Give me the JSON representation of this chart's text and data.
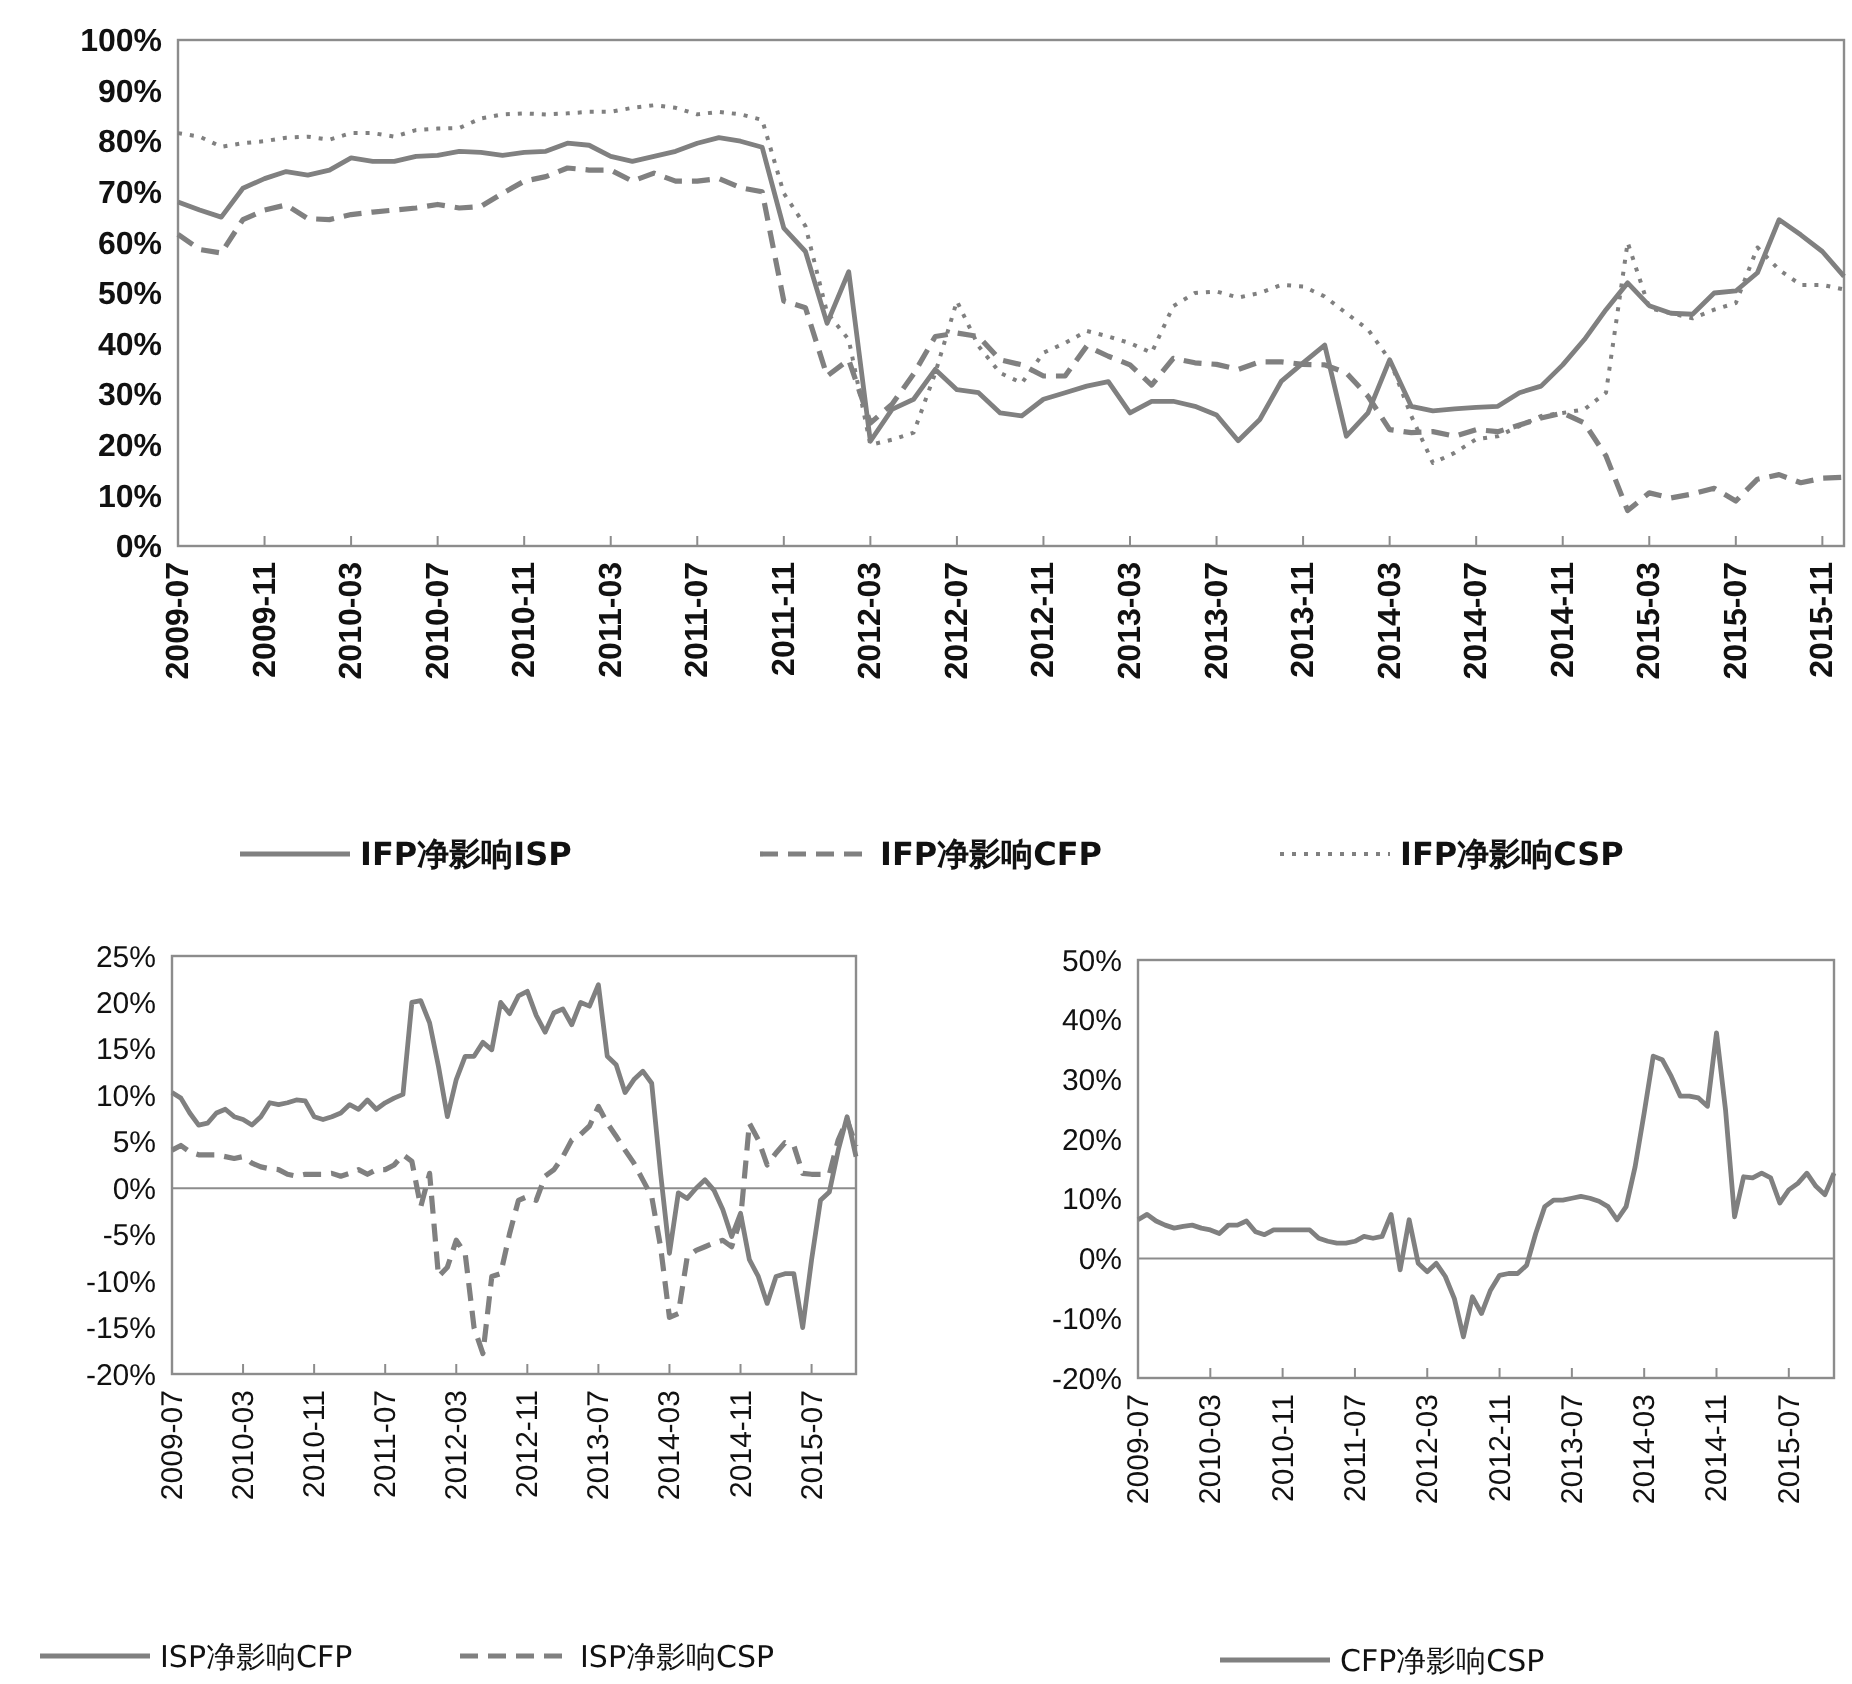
{
  "chart_data": [
    {
      "type": "line",
      "categories": [
        "2009-07",
        null,
        null,
        null,
        "2009-11",
        null,
        null,
        null,
        "2010-03",
        null,
        null,
        null,
        "2010-07",
        null,
        null,
        null,
        "2010-11",
        null,
        null,
        null,
        "2011-03",
        null,
        null,
        null,
        "2011-07",
        null,
        null,
        null,
        "2011-11",
        null,
        null,
        null,
        "2012-03",
        null,
        null,
        null,
        "2012-07",
        null,
        null,
        null,
        "2012-11",
        null,
        null,
        null,
        "2013-03",
        null,
        null,
        null,
        "2013-07",
        null,
        null,
        null,
        "2013-11",
        null,
        null,
        null,
        "2014-03",
        null,
        null,
        null,
        "2014-07",
        null,
        null,
        null,
        "2014-11",
        null,
        null,
        null,
        "2015-03",
        null,
        null,
        null,
        "2015-07",
        null,
        null,
        null,
        "2015-11",
        null
      ],
      "ylim": [
        0,
        100
      ],
      "yticks": [
        {
          "value": 0,
          "label": "0%"
        },
        {
          "value": 10,
          "label": "10%"
        },
        {
          "value": 20,
          "label": "20%"
        },
        {
          "value": 30,
          "label": "30%"
        },
        {
          "value": 40,
          "label": "40%"
        },
        {
          "value": 50,
          "label": "50%"
        },
        {
          "value": 60,
          "label": "60%"
        },
        {
          "value": 70,
          "label": "70%"
        },
        {
          "value": 80,
          "label": "80%"
        },
        {
          "value": 90,
          "label": "90%"
        },
        {
          "value": 100,
          "label": "100%"
        }
      ],
      "legend": "bottom",
      "marker": "none",
      "series": [
        {
          "name": "IFP净影响ISP",
          "color": "#808080",
          "line_style": "solid",
          "values": [
            68,
            66.4,
            65,
            70.7,
            72.6,
            74,
            73.3,
            74.3,
            76.7,
            76,
            76,
            77,
            77.2,
            78,
            77.8,
            77.2,
            77.8,
            78,
            79.6,
            79.2,
            77,
            76,
            77,
            78,
            79.6,
            80.7,
            80,
            78.8,
            62.8,
            58.2,
            44,
            54.2,
            20.7,
            27,
            29,
            34.9,
            30.9,
            30.3,
            26.3,
            25.7,
            29,
            30.3,
            31.6,
            32.5,
            26.3,
            28.6,
            28.6,
            27.6,
            25.9,
            20.8,
            25,
            32.6,
            36.2,
            39.7,
            21.7,
            26.3,
            36.8,
            27.6,
            26.7,
            27.1,
            27.4,
            27.6,
            30.3,
            31.6,
            35.8,
            40.8,
            46.7,
            52,
            47.5,
            46,
            45.8,
            50,
            50.4,
            54,
            64.5,
            61.5,
            58.2,
            53.3
          ]
        },
        {
          "name": "IFP净影响CFP",
          "color": "#808080",
          "line_style": "dashed",
          "values": [
            61.6,
            58.6,
            57.9,
            64.5,
            66.4,
            67.4,
            64.7,
            64.5,
            65.5,
            66,
            66.4,
            66.8,
            67.5,
            66.8,
            67.1,
            69.7,
            72.1,
            73,
            74.7,
            74.3,
            74.3,
            72.1,
            73.7,
            72.1,
            72.1,
            72.6,
            70.8,
            70,
            48.4,
            47.1,
            33.6,
            36.8,
            24.3,
            28,
            34,
            41.4,
            42.1,
            41.4,
            36.8,
            35.8,
            33.6,
            33.6,
            39.5,
            37.5,
            35.8,
            31.8,
            37.1,
            36.2,
            35.9,
            34.9,
            36.4,
            36.4,
            35.9,
            35.8,
            34.2,
            29.6,
            23,
            22.4,
            22.6,
            21.7,
            23,
            22.6,
            23.9,
            25.3,
            26.3,
            24.3,
            17.8,
            7,
            10.5,
            9.5,
            10.3,
            11.4,
            8.9,
            13.2,
            14.1,
            12.5,
            13.4,
            13.6
          ]
        },
        {
          "name": "IFP净影响CSP",
          "color": "#808080",
          "line_style": "dotted",
          "values": [
            81.6,
            80.9,
            78.9,
            79.6,
            80,
            80.7,
            80.9,
            80.3,
            81.6,
            81.6,
            80.9,
            82.2,
            82.5,
            82.6,
            84.5,
            85.3,
            85.5,
            85.3,
            85.5,
            85.8,
            85.8,
            86.6,
            87.1,
            86.6,
            85.3,
            85.8,
            85.3,
            84.2,
            69.7,
            63.2,
            46.1,
            40.8,
            20,
            21,
            22.4,
            34.2,
            48.4,
            39.5,
            34.2,
            32.2,
            38.2,
            40.1,
            42.5,
            41.4,
            40.1,
            38.2,
            47.4,
            50,
            50.3,
            49.1,
            50,
            51.6,
            51.3,
            49.3,
            46,
            42.8,
            36.8,
            25.7,
            16.4,
            18.4,
            21.1,
            21.7,
            23.7,
            25.7,
            26.3,
            27,
            30.3,
            60,
            47,
            46,
            45,
            46.7,
            48,
            59,
            54.6,
            51.6,
            51.6,
            50.7
          ]
        }
      ]
    },
    {
      "type": "line",
      "categories": [
        "2009-07",
        null,
        null,
        null,
        null,
        null,
        null,
        null,
        "2010-03",
        null,
        null,
        null,
        null,
        null,
        null,
        null,
        "2010-11",
        null,
        null,
        null,
        null,
        null,
        null,
        null,
        "2011-07",
        null,
        null,
        null,
        null,
        null,
        null,
        null,
        "2012-03",
        null,
        null,
        null,
        null,
        null,
        null,
        null,
        "2012-11",
        null,
        null,
        null,
        null,
        null,
        null,
        null,
        "2013-07",
        null,
        null,
        null,
        null,
        null,
        null,
        null,
        "2014-03",
        null,
        null,
        null,
        null,
        null,
        null,
        null,
        "2014-11",
        null,
        null,
        null,
        null,
        null,
        null,
        null,
        "2015-07",
        null,
        null,
        null,
        null,
        null
      ],
      "ylim": [
        -20,
        25
      ],
      "yticks": [
        {
          "value": -20,
          "label": "-20%"
        },
        {
          "value": -15,
          "label": "-15%"
        },
        {
          "value": -10,
          "label": "-10%"
        },
        {
          "value": -5,
          "label": "-5%"
        },
        {
          "value": 0,
          "label": "0%"
        },
        {
          "value": 5,
          "label": "5%"
        },
        {
          "value": 10,
          "label": "10%"
        },
        {
          "value": 15,
          "label": "15%"
        },
        {
          "value": 20,
          "label": "20%"
        },
        {
          "value": 25,
          "label": "25%"
        }
      ],
      "legend": "bottom",
      "marker": "none",
      "series": [
        {
          "name": "ISP净影响CFP",
          "color": "#808080",
          "line_style": "solid",
          "values": [
            10.3,
            9.7,
            8.1,
            6.8,
            7,
            8.1,
            8.5,
            7.7,
            7.4,
            6.8,
            7.7,
            9.2,
            9,
            9.2,
            9.5,
            9.4,
            7.7,
            7.4,
            7.7,
            8.1,
            9,
            8.5,
            9.5,
            8.5,
            9.2,
            9.7,
            10.1,
            20,
            20.2,
            17.8,
            13.1,
            7.7,
            11.7,
            14.2,
            14.2,
            15.7,
            14.9,
            20,
            18.8,
            20.7,
            21.2,
            18.6,
            16.8,
            18.9,
            19.3,
            17.6,
            20,
            19.6,
            21.9,
            14.2,
            13.3,
            10.3,
            11.7,
            12.6,
            11.3,
            1.6,
            -7,
            -0.5,
            -1.1,
            0,
            0.9,
            -0.2,
            -2.3,
            -5.2,
            -2.7,
            -7.7,
            -9.5,
            -12.4,
            -9.5,
            -9.2,
            -9.2,
            -15,
            -7.7,
            -1.3,
            -0.4,
            4.1,
            7.7,
            3.4
          ]
        },
        {
          "name": "ISP净影响CSP",
          "color": "#808080",
          "line_style": "dashed",
          "values": [
            4.1,
            4.6,
            3.9,
            3.6,
            3.6,
            3.6,
            3.4,
            3.2,
            3.4,
            2.7,
            2.3,
            2.1,
            2,
            1.5,
            1.3,
            1.5,
            1.5,
            1.5,
            1.6,
            1.3,
            1.6,
            2,
            1.5,
            2,
            2,
            2.5,
            3.6,
            2.9,
            -2,
            1.6,
            -9.5,
            -8.5,
            -5.6,
            -7,
            -15,
            -17.8,
            -9.5,
            -9.2,
            -4.9,
            -1.3,
            -0.9,
            -1.3,
            1.3,
            2,
            3.4,
            5.2,
            5.8,
            6.7,
            8.8,
            7,
            5.6,
            4.1,
            2.7,
            0.9,
            -0.9,
            -6.3,
            -13.9,
            -13.5,
            -7.4,
            -6.7,
            -6.3,
            -5.9,
            -5.6,
            -6.3,
            -3.4,
            7,
            5.2,
            2.5,
            3.8,
            4.9,
            4.6,
            1.6,
            1.5,
            1.5,
            1.5,
            5.2,
            7.4,
            4.5
          ]
        }
      ]
    },
    {
      "type": "line",
      "categories": [
        "2009-07",
        null,
        null,
        null,
        null,
        null,
        null,
        null,
        "2010-03",
        null,
        null,
        null,
        null,
        null,
        null,
        null,
        "2010-11",
        null,
        null,
        null,
        null,
        null,
        null,
        null,
        "2011-07",
        null,
        null,
        null,
        null,
        null,
        null,
        null,
        "2012-03",
        null,
        null,
        null,
        null,
        null,
        null,
        null,
        "2012-11",
        null,
        null,
        null,
        null,
        null,
        null,
        null,
        "2013-07",
        null,
        null,
        null,
        null,
        null,
        null,
        null,
        "2014-03",
        null,
        null,
        null,
        null,
        null,
        null,
        null,
        "2014-11",
        null,
        null,
        null,
        null,
        null,
        null,
        null,
        "2015-07",
        null,
        null,
        null,
        null,
        null
      ],
      "ylim": [
        -20,
        50
      ],
      "yticks": [
        {
          "value": -20,
          "label": "-20%"
        },
        {
          "value": -10,
          "label": "-10%"
        },
        {
          "value": 0,
          "label": "0%"
        },
        {
          "value": 10,
          "label": "10%"
        },
        {
          "value": 20,
          "label": "20%"
        },
        {
          "value": 30,
          "label": "30%"
        },
        {
          "value": 40,
          "label": "40%"
        },
        {
          "value": 50,
          "label": "50%"
        }
      ],
      "legend": "bottom",
      "marker": "none",
      "series": [
        {
          "name": "CFP净影响CSP",
          "color": "#808080",
          "line_style": "solid",
          "values": [
            6.5,
            7.4,
            6.3,
            5.6,
            5.1,
            5.4,
            5.6,
            5.1,
            4.8,
            4.2,
            5.6,
            5.6,
            6.3,
            4.5,
            4,
            4.8,
            4.8,
            4.8,
            4.8,
            4.8,
            3.4,
            2.9,
            2.6,
            2.6,
            2.9,
            3.7,
            3.4,
            3.7,
            7.4,
            -1.9,
            6.5,
            -0.8,
            -2.2,
            -0.8,
            -3,
            -6.7,
            -13.1,
            -6.4,
            -9.2,
            -5.3,
            -2.8,
            -2.5,
            -2.5,
            -1.1,
            4.2,
            8.7,
            9.8,
            9.8,
            10.1,
            10.4,
            10.1,
            9.6,
            8.7,
            6.5,
            8.7,
            15.4,
            24.4,
            33.9,
            33.3,
            30.5,
            27.2,
            27.2,
            26.9,
            25.5,
            37.8,
            24.9,
            7,
            13.7,
            13.5,
            14.3,
            13.5,
            9.3,
            11.5,
            12.6,
            14.3,
            12.1,
            10.7,
            14.3
          ]
        }
      ]
    }
  ]
}
